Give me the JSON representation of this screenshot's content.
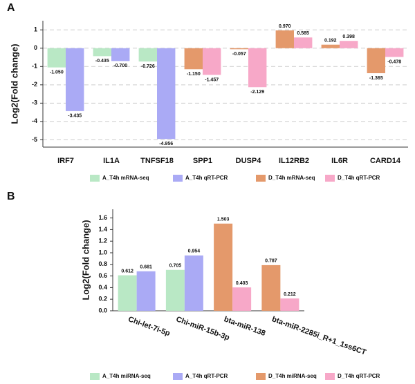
{
  "chart_data": [
    {
      "type": "bar",
      "panel": "A",
      "ylabel": "Log2(Fold change)",
      "categories": [
        "IRF7",
        "IL1A",
        "TNFSF18",
        "SPP1",
        "DUSP4",
        "IL12RB2",
        "IL6R",
        "CARD14"
      ],
      "series": [
        {
          "name": "A_T4h mRNA-seq",
          "color": "#b9e8c5",
          "values": [
            -1.05,
            -0.435,
            -0.726,
            null,
            null,
            null,
            null,
            null
          ],
          "value_labels": [
            "-1.050",
            "-0.435",
            "-0.726",
            null,
            null,
            null,
            null,
            null
          ]
        },
        {
          "name": "A_T4h qRT-PCR",
          "color": "#aaaaf5",
          "values": [
            -3.435,
            -0.7,
            -4.956,
            null,
            null,
            null,
            null,
            null
          ],
          "value_labels": [
            "-3.435",
            "-0.700",
            "-4.956",
            null,
            null,
            null,
            null,
            null
          ]
        },
        {
          "name": "D_T4h mRNA-seq",
          "color": "#e4996b",
          "values": [
            null,
            null,
            null,
            -1.15,
            -0.057,
            0.97,
            0.192,
            -1.365
          ],
          "value_labels": [
            null,
            null,
            null,
            "-1.150",
            "-0.057",
            "0.970",
            "0.192",
            "-1.365"
          ]
        },
        {
          "name": "D_T4h qRT-PCR",
          "color": "#f7a8c8",
          "values": [
            null,
            null,
            null,
            -1.457,
            -2.129,
            0.585,
            0.398,
            -0.478
          ],
          "value_labels": [
            null,
            null,
            null,
            "-1.457",
            "-2.129",
            "0.585",
            "0.398",
            "-0.478"
          ]
        }
      ],
      "ylim": [
        -5.4,
        1.5
      ],
      "yticks": [
        1,
        0,
        -1,
        -2,
        -3,
        -4,
        -5
      ],
      "grid": true
    },
    {
      "type": "bar",
      "panel": "B",
      "ylabel": "Log2(Fold change)",
      "categories": [
        "Chi-let-7i-5p",
        "Chi-miR-15b-3p",
        "bta-miR-138",
        "bta-miR-2285i_R+1_1ss6CT"
      ],
      "series": [
        {
          "name": "A_T4h miRNA-seq",
          "color": "#b9e8c5",
          "values": [
            0.612,
            0.705,
            null,
            null
          ]
        },
        {
          "name": "A_T4h qRT-PCR",
          "color": "#aaaaf5",
          "values": [
            0.681,
            0.954,
            null,
            null
          ]
        },
        {
          "name": "D_T4h miRNA-seq",
          "color": "#e4996b",
          "values": [
            null,
            null,
            1.503,
            0.787
          ]
        },
        {
          "name": "D_T4h qRT-PCR",
          "color": "#f7a8c8",
          "values": [
            null,
            null,
            0.403,
            0.212
          ]
        }
      ],
      "ylim": [
        0,
        1.75
      ],
      "yticks": [
        {
          "value": 0,
          "label": "0.0"
        },
        0.2,
        0.4,
        0.6,
        0.8,
        {
          "value": 1,
          "label": "1.0"
        },
        1.2,
        1.4,
        1.6
      ],
      "grid": false
    }
  ]
}
